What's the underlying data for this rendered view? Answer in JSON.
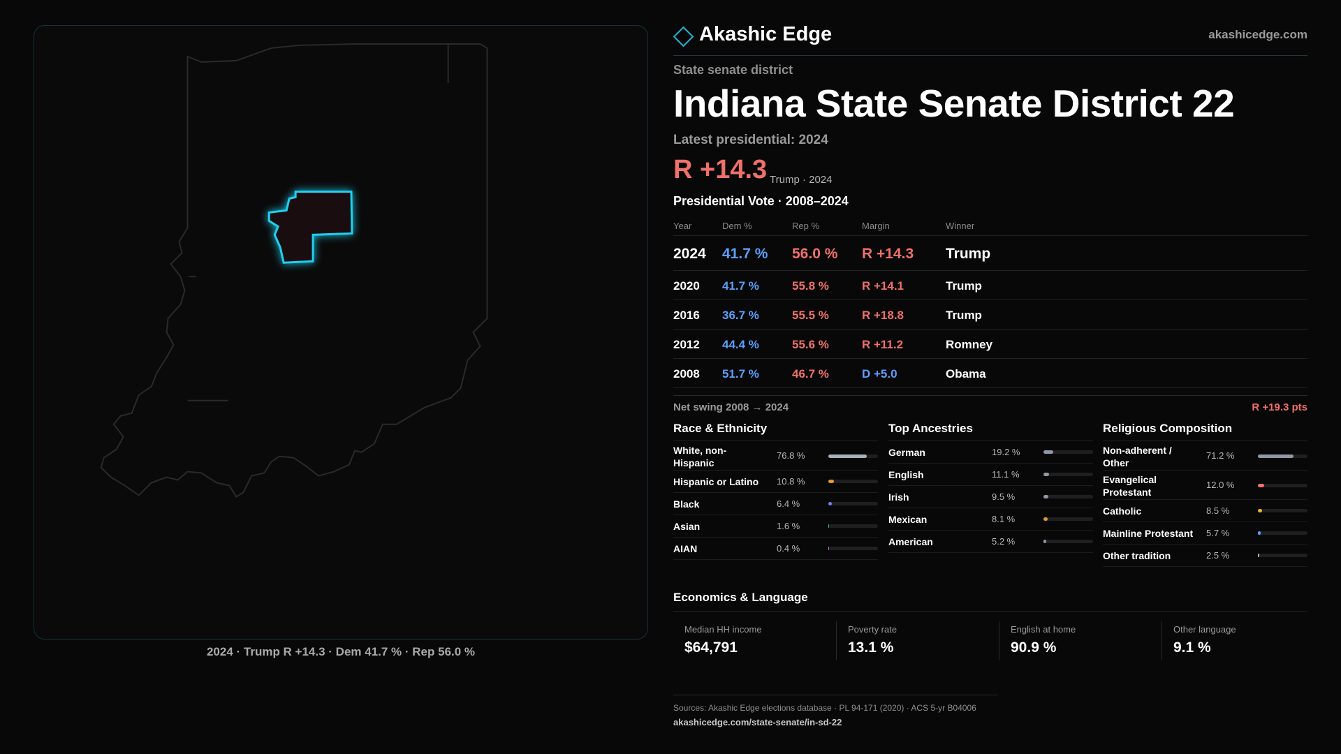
{
  "brand": {
    "name": "Akashic Edge",
    "url": "akashicedge.com"
  },
  "kicker": "State senate district",
  "title": "Indiana State Senate District 22",
  "latest_label": "Latest presidential: 2024",
  "headline_margin": "R +14.3",
  "headline_sub": "Trump · 2024",
  "vote_heading": "Presidential Vote · 2008–2024",
  "vote_columns": {
    "year": "Year",
    "dem": "Dem %",
    "rep": "Rep %",
    "margin": "Margin",
    "winner": "Winner"
  },
  "vote_rows": [
    {
      "year": "2024",
      "dem": "41.7 %",
      "rep": "56.0 %",
      "margin": "R +14.3",
      "winner": "Trump",
      "party": "R"
    },
    {
      "year": "2020",
      "dem": "41.7 %",
      "rep": "55.8 %",
      "margin": "R +14.1",
      "winner": "Trump",
      "party": "R"
    },
    {
      "year": "2016",
      "dem": "36.7 %",
      "rep": "55.5 %",
      "margin": "R +18.8",
      "winner": "Trump",
      "party": "R"
    },
    {
      "year": "2012",
      "dem": "44.4 %",
      "rep": "55.6 %",
      "margin": "R +11.2",
      "winner": "Romney",
      "party": "R"
    },
    {
      "year": "2008",
      "dem": "51.7 %",
      "rep": "46.7 %",
      "margin": "D +5.0",
      "winner": "Obama",
      "party": "D"
    }
  ],
  "swing": {
    "label": "Net swing 2008 → 2024",
    "value": "R +19.3 pts"
  },
  "race": {
    "title": "Race & Ethnicity",
    "items": [
      {
        "label": "White, non-Hispanic",
        "value": "76.8 %",
        "pct": 76.8,
        "color": "#a7b0bd"
      },
      {
        "label": "Hispanic or Latino",
        "value": "10.8 %",
        "pct": 10.8,
        "color": "#e39a2c"
      },
      {
        "label": "Black",
        "value": "6.4 %",
        "pct": 6.4,
        "color": "#7c7cf0"
      },
      {
        "label": "Asian",
        "value": "1.6 %",
        "pct": 1.6,
        "color": "#3fb98f"
      },
      {
        "label": "AIAN",
        "value": "0.4 %",
        "pct": 0.4,
        "color": "#c06bd6"
      }
    ]
  },
  "ancestry": {
    "title": "Top Ancestries",
    "items": [
      {
        "label": "German",
        "value": "19.2 %",
        "pct": 19.2,
        "color": "#8f98a8"
      },
      {
        "label": "English",
        "value": "11.1 %",
        "pct": 11.1,
        "color": "#8f98a8"
      },
      {
        "label": "Irish",
        "value": "9.5 %",
        "pct": 9.5,
        "color": "#8f98a8"
      },
      {
        "label": "Mexican",
        "value": "8.1 %",
        "pct": 8.1,
        "color": "#e39a2c"
      },
      {
        "label": "American",
        "value": "5.2 %",
        "pct": 5.2,
        "color": "#8f98a8"
      }
    ]
  },
  "religion": {
    "title": "Religious Composition",
    "items": [
      {
        "label": "Non-adherent / Other",
        "value": "71.2 %",
        "pct": 71.2,
        "color": "#8f98a8"
      },
      {
        "label": "Evangelical Protestant",
        "value": "12.0 %",
        "pct": 12.0,
        "color": "#f0706a"
      },
      {
        "label": "Catholic",
        "value": "8.5 %",
        "pct": 8.5,
        "color": "#e3b42c"
      },
      {
        "label": "Mainline Protestant",
        "value": "5.7 %",
        "pct": 5.7,
        "color": "#5aa0ff"
      },
      {
        "label": "Other tradition",
        "value": "2.5 %",
        "pct": 2.5,
        "color": "#a7b0bd"
      }
    ]
  },
  "economics": {
    "title": "Economics & Language",
    "items": [
      {
        "label": "Median HH income",
        "value": "$64,791"
      },
      {
        "label": "Poverty rate",
        "value": "13.1 %"
      },
      {
        "label": "English at home",
        "value": "90.9 %"
      },
      {
        "label": "Other language",
        "value": "9.1 %"
      }
    ]
  },
  "sources": {
    "line": "Sources: Akashic Edge elections database · PL 94-171 (2020) · ACS 5-yr B04006",
    "url": "akashicedge.com/state-senate/in-sd-22"
  },
  "map_caption": "2024 · Trump R +14.3 · Dem 41.7 % · Rep 56.0 %",
  "colors": {
    "rep": "#f0706a",
    "dem": "#5aa0ff",
    "accent": "#1fb8d6"
  }
}
